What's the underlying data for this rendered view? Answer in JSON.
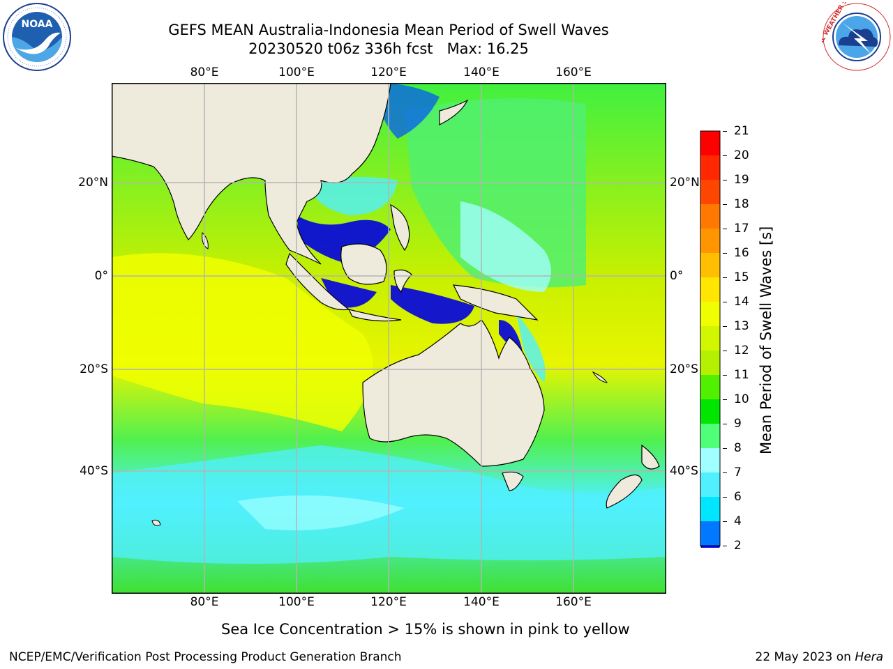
{
  "title": {
    "line1": "GEFS MEAN Australia-Indonesia Mean Period of Swell Waves",
    "line2": "20230520 t06z 336h fcst   Max: 16.25"
  },
  "logos": {
    "left": {
      "text": "NOAA",
      "ring_text": "NATIONAL OCEANIC AND ATMOSPHERIC ADMINISTRATION · U.S. DEPARTMENT OF COMMERCE"
    },
    "right": {
      "ring_text": "NATIONAL WEATHER SERVICE"
    }
  },
  "map": {
    "lon_ticks": [
      "80°E",
      "100°E",
      "120°E",
      "140°E",
      "160°E"
    ],
    "lat_ticks": [
      "20°N",
      "0°",
      "20°S",
      "40°S"
    ],
    "colors": {
      "land": "#efebdc",
      "grid": "#b4b4b4",
      "coast": "#000000"
    }
  },
  "colorbar": {
    "label": "Mean Period of Swell Waves [s]",
    "levels": [
      "2",
      "4",
      "6",
      "7",
      "8",
      "9",
      "10",
      "11",
      "12",
      "13",
      "14",
      "15",
      "16",
      "17",
      "18",
      "19",
      "20",
      "21"
    ],
    "colors": [
      "#0078ff",
      "#00e6ff",
      "#50f0ff",
      "#a0ffff",
      "#50ff78",
      "#00e600",
      "#50f000",
      "#b4f000",
      "#d2f500",
      "#f0ff00",
      "#ffe600",
      "#ffbe00",
      "#ff9600",
      "#ff7800",
      "#ff4600",
      "#ff2800",
      "#ff0000"
    ],
    "extend_color": "#0000ff"
  },
  "footnote": "Sea Ice Concentration > 15% is shown in pink to yellow",
  "credit": {
    "left": "NCEP/EMC/Verification Post Processing Product Generation Branch",
    "right_date": "22 May 2023 on ",
    "right_host": "Hera"
  }
}
